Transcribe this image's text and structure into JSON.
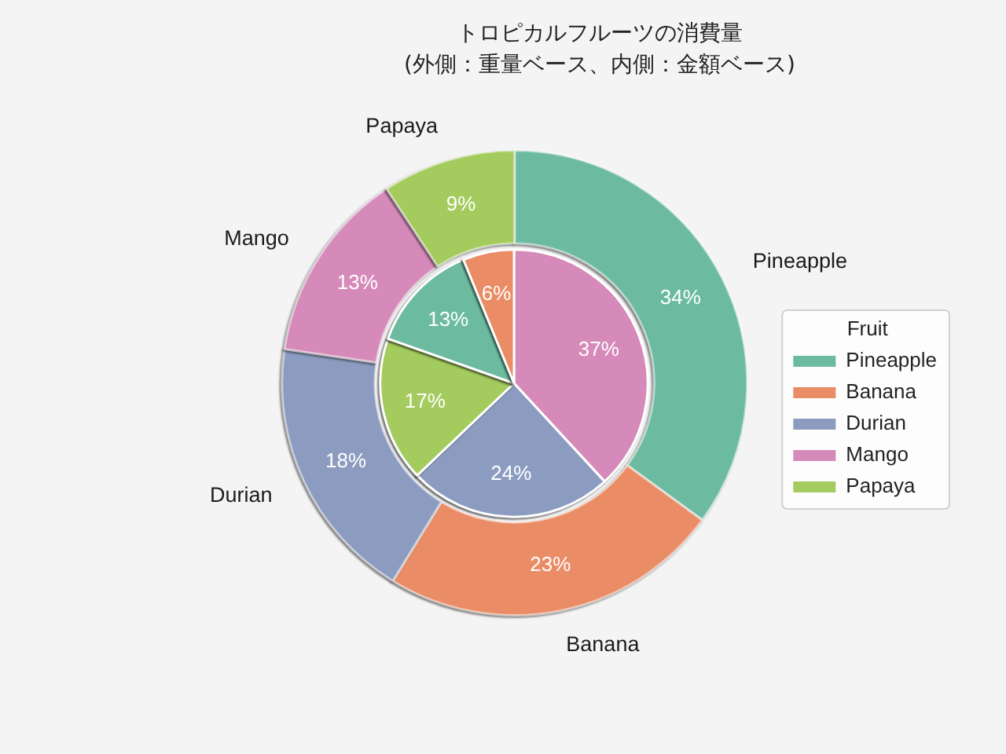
{
  "chart_data": [
    {
      "type": "donut",
      "title": "トロピカルフルーツの消費量",
      "subtitle": "(外側：重量ベース、内側：金額ベース)",
      "legend_title": "Fruit",
      "legend": "right",
      "categories": [
        "Pineapple",
        "Banana",
        "Durian",
        "Mango",
        "Papaya"
      ],
      "values": [
        34,
        23,
        18,
        13,
        9
      ],
      "colors": [
        "#6cbba1",
        "#ea8c66",
        "#8c9cc0",
        "#d68ab9",
        "#a4cb5d"
      ],
      "value_labels": [
        "34%",
        "23%",
        "18%",
        "13%",
        "9%"
      ]
    },
    {
      "type": "pie",
      "values": [
        37,
        24,
        17,
        13,
        6
      ],
      "colors": [
        "#d68ab9",
        "#8c9cc0",
        "#a4cb5d",
        "#6cbba1",
        "#ea8c66"
      ],
      "value_labels": [
        "37%",
        "24%",
        "17%",
        "13%",
        "6%"
      ]
    }
  ]
}
